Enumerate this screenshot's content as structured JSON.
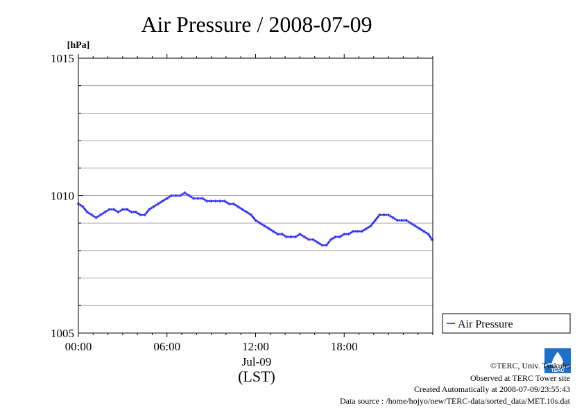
{
  "chart_data": {
    "type": "line",
    "title": "Air Pressure / 2008-07-09",
    "ylabel_unit": "[hPa]",
    "ylim": [
      1005,
      1015
    ],
    "y_ticks": [
      "1005",
      "1010",
      "1015"
    ],
    "y_minor_step": 1,
    "x_range_hours": [
      0,
      24
    ],
    "x_ticks": [
      {
        "hour": 0,
        "label": "00:00"
      },
      {
        "hour": 6,
        "label": "06:00"
      },
      {
        "hour": 12,
        "label": "12:00"
      },
      {
        "hour": 18,
        "label": "18:00"
      }
    ],
    "x_date_label": "Jul-09",
    "x_timezone_label": "(LST)",
    "grid": true,
    "legend_position": "right-bottom",
    "series": [
      {
        "name": "Air Pressure",
        "color": "#2020ff",
        "x": [
          0.0,
          0.3,
          0.6,
          0.9,
          1.2,
          1.5,
          1.8,
          2.1,
          2.4,
          2.7,
          3.0,
          3.3,
          3.6,
          3.9,
          4.2,
          4.5,
          4.8,
          5.1,
          5.4,
          5.7,
          6.0,
          6.3,
          6.6,
          6.9,
          7.2,
          7.5,
          7.8,
          8.1,
          8.4,
          8.7,
          9.0,
          9.3,
          9.6,
          9.9,
          10.2,
          10.5,
          10.8,
          11.1,
          11.4,
          11.7,
          12.0,
          12.3,
          12.6,
          12.9,
          13.2,
          13.5,
          13.8,
          14.1,
          14.4,
          14.7,
          15.0,
          15.3,
          15.6,
          15.9,
          16.2,
          16.5,
          16.8,
          17.1,
          17.4,
          17.7,
          18.0,
          18.3,
          18.6,
          18.9,
          19.2,
          19.5,
          19.8,
          20.1,
          20.4,
          20.7,
          21.0,
          21.3,
          21.6,
          21.9,
          22.2,
          22.5,
          22.8,
          23.1,
          23.4,
          23.7,
          23.95
        ],
        "values": [
          1009.7,
          1009.6,
          1009.4,
          1009.3,
          1009.2,
          1009.3,
          1009.4,
          1009.5,
          1009.5,
          1009.4,
          1009.5,
          1009.5,
          1009.4,
          1009.4,
          1009.3,
          1009.3,
          1009.5,
          1009.6,
          1009.7,
          1009.8,
          1009.9,
          1010.0,
          1010.0,
          1010.0,
          1010.1,
          1010.0,
          1009.9,
          1009.9,
          1009.9,
          1009.8,
          1009.8,
          1009.8,
          1009.8,
          1009.8,
          1009.7,
          1009.7,
          1009.6,
          1009.5,
          1009.4,
          1009.3,
          1009.1,
          1009.0,
          1008.9,
          1008.8,
          1008.7,
          1008.6,
          1008.6,
          1008.5,
          1008.5,
          1008.5,
          1008.6,
          1008.5,
          1008.4,
          1008.4,
          1008.3,
          1008.2,
          1008.2,
          1008.4,
          1008.5,
          1008.5,
          1008.6,
          1008.6,
          1008.7,
          1008.7,
          1008.7,
          1008.8,
          1008.9,
          1009.1,
          1009.3,
          1009.3,
          1009.3,
          1009.2,
          1009.1,
          1009.1,
          1009.1,
          1009.0,
          1008.9,
          1008.8,
          1008.7,
          1008.6,
          1008.4
        ]
      }
    ]
  },
  "credits": {
    "copyright": "©TERC, Univ. Tsukuba",
    "observed": "Observed at TERC Tower site",
    "created": "Created Automatically at 2008-07-09/23:55:43",
    "source": "Data source : /home/hojyo/new/TERC-data/sorted_data/MET.10s.dat"
  },
  "logo": {
    "text": "TERC",
    "color": "#1e6fc8"
  }
}
